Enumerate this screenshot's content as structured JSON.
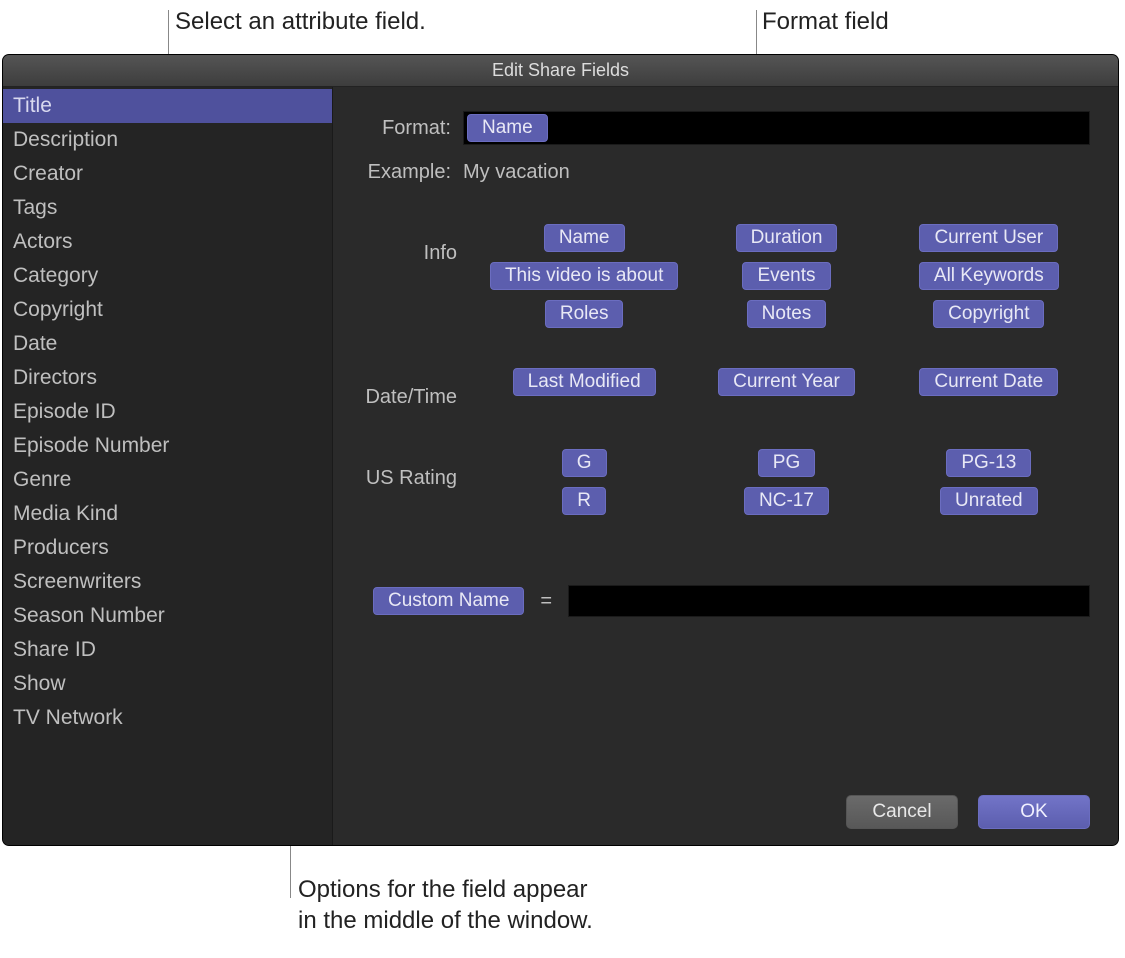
{
  "callouts": {
    "top_left": "Select an attribute field.",
    "top_right": "Format field",
    "bottom": "Options for the field appear\nin the middle of the window."
  },
  "window": {
    "title": "Edit Share Fields"
  },
  "sidebar": {
    "items": [
      "Title",
      "Description",
      "Creator",
      "Tags",
      "Actors",
      "Category",
      "Copyright",
      "Date",
      "Directors",
      "Episode ID",
      "Episode Number",
      "Genre",
      "Media Kind",
      "Producers",
      "Screenwriters",
      "Season Number",
      "Share ID",
      "Show",
      "TV Network"
    ],
    "selected_index": 0
  },
  "panel": {
    "format_label": "Format:",
    "format_tokens": [
      "Name"
    ],
    "example_label": "Example:",
    "example_value": "My vacation",
    "sections": [
      {
        "label": "Info",
        "rows": [
          [
            "Name",
            "Duration",
            "Current User"
          ],
          [
            "This video is about",
            "Events",
            "All Keywords"
          ],
          [
            "Roles",
            "Notes",
            "Copyright"
          ]
        ]
      },
      {
        "label": "Date/Time",
        "rows": [
          [
            "Last Modified",
            "Current Year",
            "Current Date"
          ]
        ]
      },
      {
        "label": "US Rating",
        "rows": [
          [
            "G",
            "PG",
            "PG-13"
          ],
          [
            "R",
            "NC-17",
            "Unrated"
          ]
        ]
      }
    ],
    "custom_name_label": "Custom Name",
    "equals": "=",
    "custom_value": ""
  },
  "buttons": {
    "cancel": "Cancel",
    "ok": "OK"
  },
  "colors": {
    "token_bg": "#5c5eae",
    "token_border": "#6b6dc0",
    "token_text": "#e8e8f5",
    "window_bg": "#2a2a2a",
    "sidebar_bg": "#242424",
    "selected_bg": "#4f519d"
  }
}
